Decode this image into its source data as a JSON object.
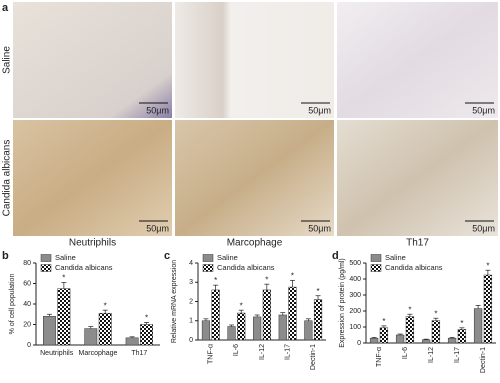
{
  "panel_a": {
    "label": "a",
    "rows": [
      "Saline",
      "Candida albicans"
    ],
    "columns": [
      "Neutriphils",
      "Marcophage",
      "Th17"
    ],
    "scale_bar": "50μm"
  },
  "chart_data": [
    {
      "type": "bar",
      "panel_label": "b",
      "ylabel": "% of cell population",
      "categories": [
        "Neutriphils",
        "Marcophage",
        "Th17"
      ],
      "rotate_labels": false,
      "ylim": [
        0,
        80
      ],
      "yticks": [
        0,
        20,
        40,
        60,
        80
      ],
      "series": [
        {
          "name": "Saline",
          "color": "#8c8c8c",
          "values": [
            28,
            16,
            7
          ],
          "errors": [
            2,
            2,
            1
          ]
        },
        {
          "name": "Candida albicans",
          "color": "checker",
          "values": [
            55,
            31,
            20
          ],
          "errors": [
            6,
            3,
            2
          ],
          "significance": [
            "*",
            "*",
            "*"
          ]
        }
      ]
    },
    {
      "type": "bar",
      "panel_label": "c",
      "ylabel": "Relative mRNA expression",
      "categories": [
        "TNF-α",
        "IL-6",
        "IL-12",
        "IL-17",
        "Dectin-1"
      ],
      "rotate_labels": true,
      "ylim": [
        0,
        4
      ],
      "yticks": [
        0,
        1,
        2,
        3,
        4
      ],
      "series": [
        {
          "name": "Saline",
          "color": "#8c8c8c",
          "values": [
            1.0,
            0.7,
            1.2,
            1.3,
            1.0
          ],
          "errors": [
            0.1,
            0.08,
            0.1,
            0.12,
            0.1
          ]
        },
        {
          "name": "Candida albicans",
          "color": "checker",
          "values": [
            2.6,
            1.4,
            2.6,
            2.75,
            2.1
          ],
          "errors": [
            0.25,
            0.15,
            0.3,
            0.35,
            0.2
          ],
          "significance": [
            "*",
            "*",
            "*",
            "*",
            "*"
          ]
        }
      ]
    },
    {
      "type": "bar",
      "panel_label": "d",
      "ylabel": "Expression of protein (pg/ml)",
      "categories": [
        "TNF-α",
        "IL-6",
        "IL-12",
        "IL-17",
        "Dectin-1"
      ],
      "rotate_labels": true,
      "ylim": [
        0,
        500
      ],
      "yticks": [
        0,
        100,
        200,
        300,
        400,
        500
      ],
      "series": [
        {
          "name": "Saline",
          "color": "#8c8c8c",
          "values": [
            30,
            50,
            20,
            30,
            215
          ],
          "errors": [
            5,
            6,
            4,
            5,
            20
          ]
        },
        {
          "name": "Candida albicans",
          "color": "checker",
          "values": [
            95,
            165,
            140,
            85,
            425
          ],
          "errors": [
            12,
            15,
            15,
            10,
            30
          ],
          "significance": [
            "*",
            "*",
            "*",
            "*",
            "*"
          ]
        }
      ]
    }
  ]
}
